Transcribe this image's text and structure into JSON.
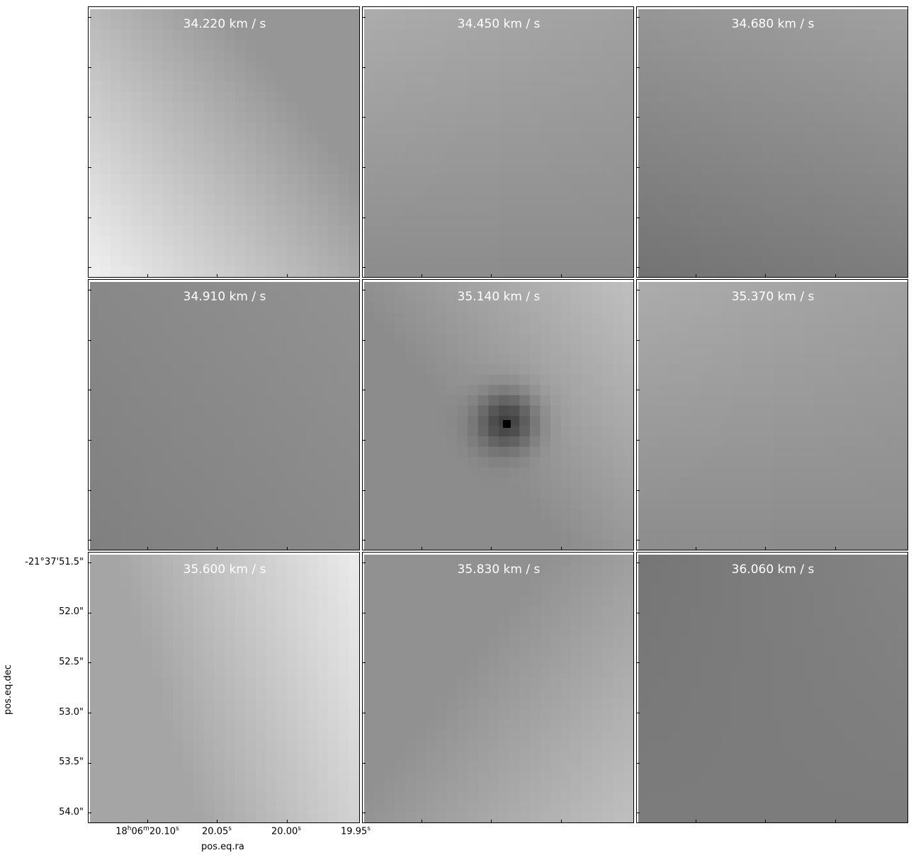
{
  "chart_data": {
    "type": "heatmap",
    "xlabel": "pos.eq.ra",
    "ylabel": "pos.eq.dec",
    "colormap": "gray",
    "xticks": [
      {
        "h": "18",
        "m": "06",
        "s": "20.10"
      },
      {
        "s": "20.05"
      },
      {
        "s": "20.00"
      },
      {
        "s": "19.95"
      }
    ],
    "yticks": [
      "-21°37'51.5\"",
      "52.0\"",
      "52.5\"",
      "53.0\"",
      "53.5\"",
      "54.0\""
    ],
    "panels": [
      {
        "label": "34.220 km / s",
        "pattern": "gradient-corner-bl-light"
      },
      {
        "label": "34.450 km / s",
        "pattern": "uniform-mid"
      },
      {
        "label": "34.680 km / s",
        "pattern": "uniform-mid-dark"
      },
      {
        "label": "34.910 km / s",
        "pattern": "uniform-dark"
      },
      {
        "label": "35.140 km / s",
        "pattern": "central-dark-source"
      },
      {
        "label": "35.370 km / s",
        "pattern": "uniform-mid"
      },
      {
        "label": "35.600 km / s",
        "pattern": "gradient-right-light"
      },
      {
        "label": "35.830 km / s",
        "pattern": "gradient-corner-br-light"
      },
      {
        "label": "36.060 km / s",
        "pattern": "uniform-darker"
      }
    ]
  }
}
